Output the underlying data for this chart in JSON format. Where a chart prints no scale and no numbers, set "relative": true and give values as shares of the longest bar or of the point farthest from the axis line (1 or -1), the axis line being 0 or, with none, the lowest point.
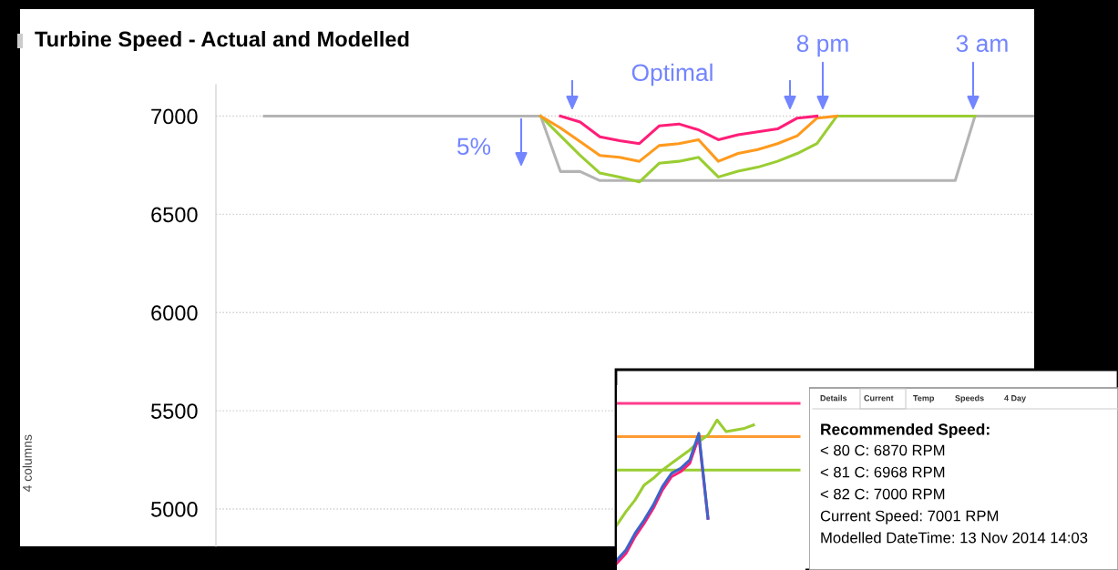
{
  "chart_data": [
    {
      "type": "line",
      "title": "Turbine Speed - Actual and Modelled",
      "ylabel": "4 columns",
      "annotations": [
        "Optimal",
        "8 pm",
        "3 am",
        "5%"
      ],
      "categories": [
        null,
        null,
        null,
        null,
        null,
        null,
        null,
        null,
        null,
        null,
        null,
        null,
        null,
        null,
        null,
        null,
        null,
        null,
        null,
        null,
        null,
        null,
        null,
        null,
        null,
        null,
        null,
        null,
        null,
        null,
        null,
        null,
        null,
        null,
        null,
        null,
        null,
        null,
        null,
        null
      ],
      "series": [
        {
          "color": "#b4b4b4",
          "values": [
            7000,
            7000,
            7000,
            7000,
            7000,
            7000,
            7000,
            7000,
            7000,
            7000,
            7000,
            7000,
            7000,
            7000,
            7000,
            6718,
            6718,
            6672,
            6672,
            6672,
            6672,
            6672,
            6672,
            6672,
            6672,
            6672,
            6672,
            6672,
            6672,
            6672,
            6672,
            6672,
            6672,
            6672,
            6672,
            6672,
            7000,
            7000,
            7000,
            7000
          ]
        },
        {
          "color": "#9acd32",
          "values": [
            null,
            null,
            null,
            null,
            null,
            null,
            null,
            null,
            null,
            null,
            null,
            null,
            null,
            null,
            7000,
            6900,
            6800,
            6710,
            6690,
            6665,
            6760,
            6770,
            6790,
            6690,
            6720,
            6740,
            6770,
            6810,
            6860,
            7000,
            7000,
            7000,
            7000,
            7000,
            7000,
            7000,
            7000,
            null,
            null,
            null
          ]
        },
        {
          "color": "#ff9a1e",
          "values": [
            null,
            null,
            null,
            null,
            null,
            null,
            null,
            null,
            null,
            null,
            null,
            null,
            null,
            null,
            7000,
            6940,
            6870,
            6800,
            6790,
            6770,
            6850,
            6860,
            6880,
            6770,
            6810,
            6830,
            6860,
            6900,
            6990,
            7000,
            null,
            null,
            null,
            null,
            null,
            null,
            null,
            null,
            null,
            null
          ]
        },
        {
          "color": "#ff1e78",
          "values": [
            null,
            null,
            null,
            null,
            null,
            null,
            null,
            null,
            null,
            null,
            null,
            null,
            null,
            null,
            null,
            7000,
            6970,
            6895,
            6875,
            6860,
            6950,
            6960,
            6930,
            6880,
            6905,
            6920,
            6935,
            6990,
            7000,
            null,
            null,
            null,
            null,
            null,
            null,
            null,
            null,
            null,
            null,
            null
          ]
        }
      ],
      "ylim": [
        4810,
        7160
      ],
      "yticks": [
        5000,
        5500,
        6000,
        6500,
        7000
      ],
      "grid": "y",
      "tick_labels": "y"
    },
    {
      "type": "line",
      "relative": true,
      "tick_labels": false,
      "categories": [
        null,
        null,
        null,
        null,
        null,
        null,
        null,
        null,
        null,
        null,
        null,
        null,
        null,
        null,
        null,
        null,
        null,
        null,
        null,
        null,
        null
      ],
      "series": [
        {
          "color": "#ff3c8c",
          "values": [
            1,
            1,
            1,
            1,
            1,
            1,
            1,
            1,
            1,
            1,
            1,
            1,
            1,
            1,
            1,
            1,
            1,
            1,
            1,
            1,
            1
          ]
        },
        {
          "color": "#ff9a32",
          "values": [
            0.8,
            0.8,
            0.8,
            0.8,
            0.8,
            0.8,
            0.8,
            0.8,
            0.8,
            0.8,
            0.8,
            0.8,
            0.8,
            0.8,
            0.8,
            0.8,
            0.8,
            0.8,
            0.8,
            0.8,
            0.8
          ]
        },
        {
          "color": "#9acd32",
          "values": [
            0.6,
            0.6,
            0.6,
            0.6,
            0.6,
            0.6,
            0.6,
            0.6,
            0.6,
            0.6,
            0.6,
            0.6,
            0.6,
            0.6,
            0.6,
            0.6,
            0.6,
            0.6,
            0.6,
            0.6,
            0.6
          ]
        },
        {
          "color": "#9acd32",
          "values": [
            0.27,
            0.35,
            0.42,
            0.51,
            0.55,
            0.6,
            0.64,
            0.68,
            0.72,
            0.77,
            0.81,
            0.9,
            0.83,
            0.84,
            0.85,
            0.87,
            null,
            null,
            null,
            null,
            null
          ]
        },
        {
          "color": "#ff1e78",
          "values": [
            0.04,
            0.1,
            0.2,
            0.28,
            0.37,
            0.48,
            0.56,
            0.59,
            0.64,
            0.8,
            0.31,
            null,
            null,
            null,
            null,
            null,
            null,
            null,
            null,
            null,
            null
          ]
        },
        {
          "color": "#3c64c8",
          "values": [
            0.06,
            0.12,
            0.22,
            0.3,
            0.39,
            0.5,
            0.58,
            0.61,
            0.66,
            0.82,
            0.31,
            null,
            null,
            null,
            null,
            null,
            null,
            null,
            null,
            null,
            null
          ]
        }
      ]
    },
    {
      "type": "other",
      "title": "Recommended Speed:",
      "categories": [
        "Details",
        "Current",
        "Temp",
        "Speeds",
        "4 Day"
      ],
      "annotations": [
        "< 80 C: 6870 RPM",
        "< 81 C: 6968 RPM",
        "< 82 C: 7000 RPM",
        "Current Speed: 7001 RPM",
        "Modelled DateTime: 13 Nov 2014 14:03"
      ]
    }
  ]
}
